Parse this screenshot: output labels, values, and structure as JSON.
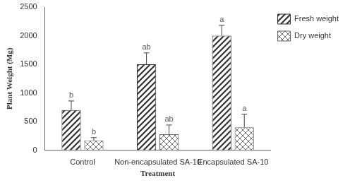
{
  "chart_data": {
    "type": "bar",
    "x_label": "Treatment",
    "y_label": "Plant Weight (Mg)",
    "categories": [
      "Control",
      "Non-encapsulated SA-10",
      "Encapsulated SA-10"
    ],
    "series": [
      {
        "name": "Fresh weight",
        "color": "#333333",
        "values": [
          700,
          1500,
          2000
        ],
        "errors": [
          160,
          200,
          180
        ],
        "annotations": [
          "b",
          "ab",
          "a"
        ]
      },
      {
        "name": "Dry weight",
        "color": "#666666",
        "values": [
          170,
          280,
          400
        ],
        "errors": [
          50,
          160,
          230
        ],
        "annotations": [
          "b",
          "ab",
          "a"
        ]
      }
    ],
    "ylim": [
      0,
      2500
    ],
    "yticks": [
      0,
      500,
      1000,
      1500,
      2000,
      2500
    ],
    "grid": false,
    "legend": "right"
  }
}
